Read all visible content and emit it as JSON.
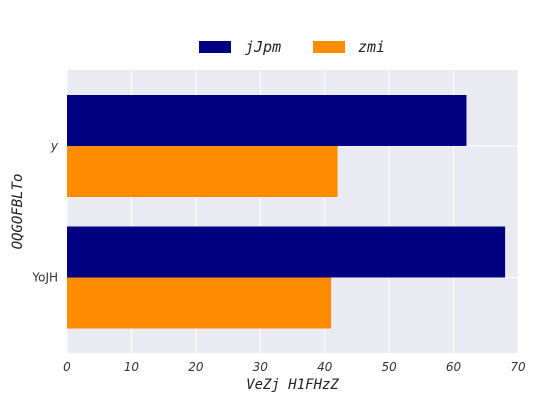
{
  "chart_data": {
    "type": "bar",
    "orientation": "horizontal",
    "categories": [
      "y",
      "YoJH"
    ],
    "series": [
      {
        "name": "jJpm",
        "color": "#000080",
        "values": [
          62,
          68
        ]
      },
      {
        "name": "zmi",
        "color": "#FF8C00",
        "values": [
          42,
          41
        ]
      }
    ],
    "xlabel": "VeZj H1FHzZ",
    "ylabel": "OQGOFBLTo",
    "xlim": [
      0,
      70
    ],
    "xticks": [
      0,
      10,
      20,
      30,
      40,
      50,
      60,
      70
    ],
    "grid": true,
    "legend_position": "top-center",
    "plot_background": "#EAEAF2"
  }
}
